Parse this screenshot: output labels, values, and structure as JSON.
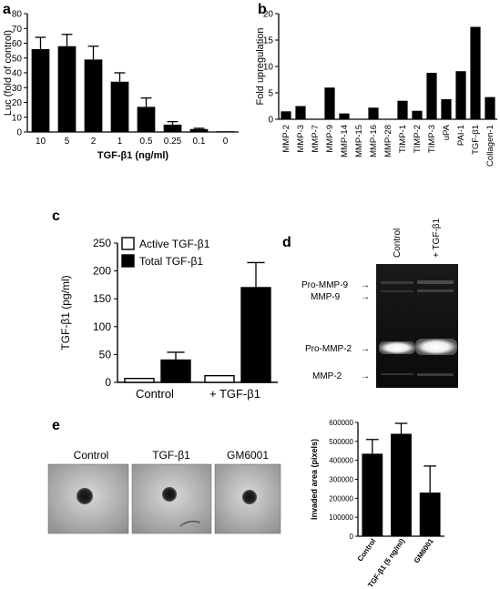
{
  "panels": {
    "a": "a",
    "b": "b",
    "c": "c",
    "d": "d",
    "e": "e"
  },
  "chart_data": [
    {
      "id": "a",
      "type": "bar",
      "title": "",
      "xlabel": "TGF-β1 (ng/ml)",
      "ylabel": "Luc (fold of control)",
      "categories": [
        "10",
        "5",
        "2",
        "1",
        "0.5",
        "0.25",
        "0.1",
        "0"
      ],
      "values": [
        56,
        58,
        49,
        34,
        17,
        5,
        2,
        0.5
      ],
      "errors": [
        8,
        8,
        9,
        6,
        6,
        2,
        0.5,
        0
      ],
      "ylim": [
        0,
        80
      ],
      "yticks": [
        0,
        10,
        20,
        30,
        40,
        50,
        60,
        70,
        80
      ],
      "color": "#000000"
    },
    {
      "id": "b",
      "type": "bar",
      "title": "",
      "xlabel": "",
      "ylabel": "Fold upregulation",
      "categories": [
        "MMP-2",
        "MMP-3",
        "MMP-7",
        "MMP-9",
        "MMP-14",
        "MMP-15",
        "MMP-16",
        "MMP-28",
        "TIMP-1",
        "TIMP-2",
        "TIMP-3",
        "uPA",
        "PAI-1",
        "TGF-β1",
        "Collagen-1"
      ],
      "values": [
        1.5,
        2.5,
        0,
        6,
        1.1,
        0,
        2.2,
        0,
        3.5,
        1.6,
        8.8,
        3.8,
        9.1,
        17.5,
        4.2
      ],
      "ylim": [
        0,
        20
      ],
      "yticks": [
        0,
        5,
        10,
        15,
        20
      ],
      "color": "#000000"
    },
    {
      "id": "c",
      "type": "bar",
      "title": "",
      "xlabel": "",
      "ylabel": "TGF-β1 (pg/ml)",
      "categories": [
        "Control",
        "+ TGF-β1"
      ],
      "series": [
        {
          "name": "Active TGF-β1",
          "values": [
            7,
            12
          ],
          "errors": [
            0,
            0
          ],
          "color": "#ffffff"
        },
        {
          "name": "Total TGF-β1",
          "values": [
            40,
            170
          ],
          "errors": [
            14,
            45
          ],
          "color": "#000000"
        }
      ],
      "ylim": [
        0,
        250
      ],
      "yticks": [
        0,
        50,
        100,
        150,
        200,
        250
      ],
      "legend": "top-left"
    },
    {
      "id": "e",
      "type": "bar",
      "title": "",
      "xlabel": "",
      "ylabel": "Invaded area (pixels)",
      "categories": [
        "Control",
        "TGF-β1 (5 ng/ml)",
        "GM6001"
      ],
      "values": [
        435000,
        540000,
        230000
      ],
      "errors": [
        75000,
        55000,
        140000
      ],
      "ylim": [
        0,
        600000
      ],
      "yticks": [
        0,
        100000,
        200000,
        300000,
        400000,
        500000,
        600000
      ],
      "color": "#000000"
    }
  ],
  "gel": {
    "lanes": [
      "Control",
      "+ TGF-β1"
    ],
    "bands": [
      "Pro-MMP-9",
      "MMP-9",
      "Pro-MMP-2",
      "MMP-2"
    ],
    "arrow": "→"
  },
  "photos": {
    "labels": [
      "Control",
      "TGF-β1",
      "GM6001"
    ]
  }
}
